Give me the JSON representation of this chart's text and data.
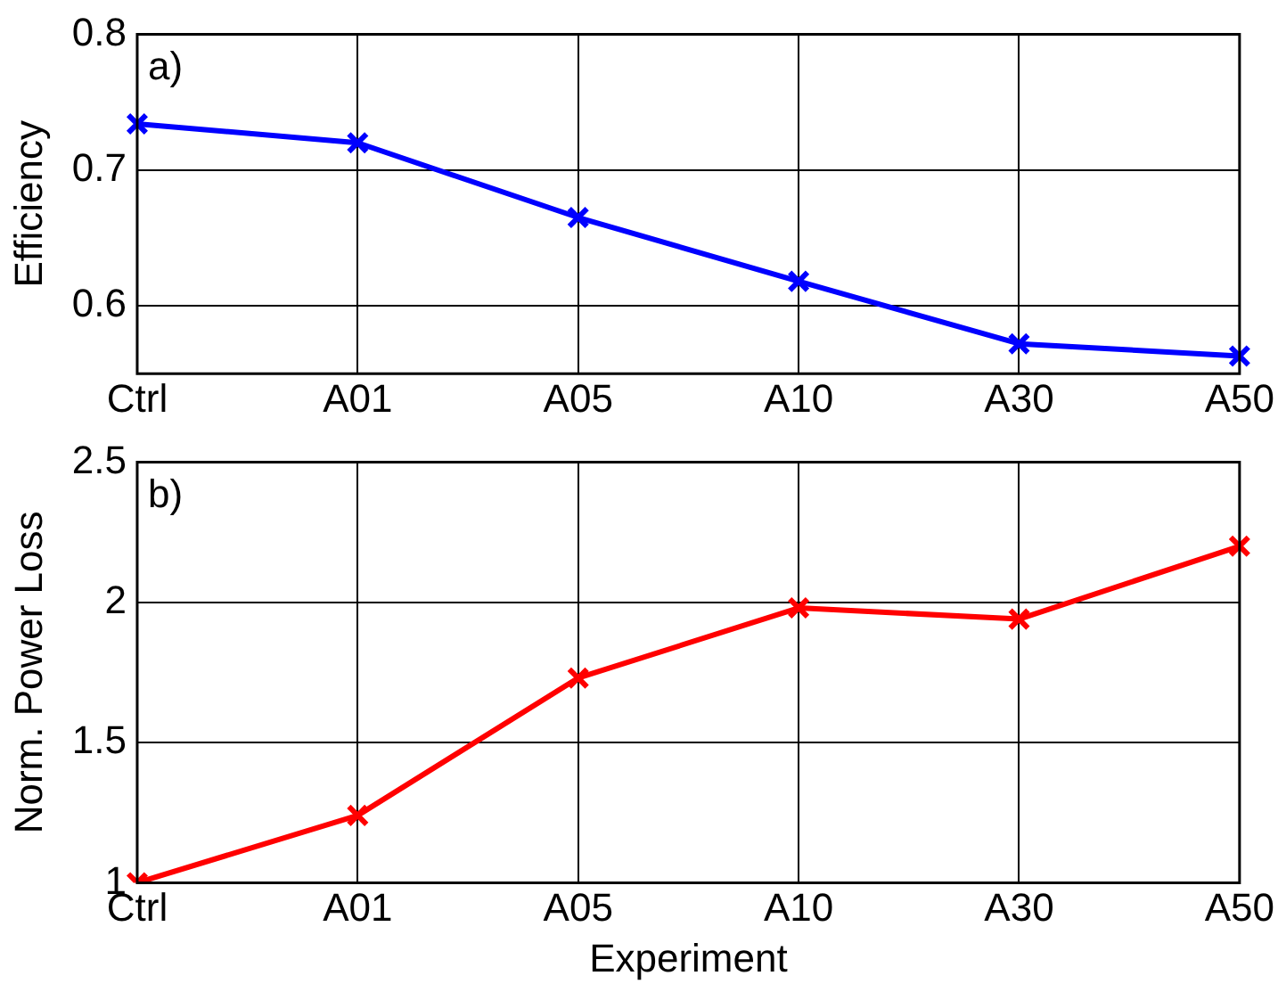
{
  "chart_data": [
    {
      "type": "line",
      "ylabel": "Efficiency",
      "annotations": [
        "a)"
      ],
      "categories": [
        "Ctrl",
        "A01",
        "A05",
        "A10",
        "A30",
        "A50"
      ],
      "series": [
        {
          "color": "#0000ff",
          "values": [
            0.734,
            0.72,
            0.665,
            0.618,
            0.572,
            0.563
          ]
        }
      ],
      "ylim": [
        0.55,
        0.8
      ],
      "yticks": [
        0.6,
        0.7,
        0.8
      ],
      "grid": true,
      "marker": "cross",
      "line_style": "solid"
    },
    {
      "type": "line",
      "xlabel": "Experiment",
      "ylabel": "Norm. Power Loss",
      "annotations": [
        "b)"
      ],
      "categories": [
        "Ctrl",
        "A01",
        "A05",
        "A10",
        "A30",
        "A50"
      ],
      "series": [
        {
          "color": "#ff0000",
          "values": [
            1,
            1.24,
            1.73,
            1.98,
            1.94,
            2.2
          ]
        }
      ],
      "ylim": [
        1,
        2.5
      ],
      "yticks": [
        1,
        1.5,
        2,
        2.5
      ],
      "grid": true,
      "marker": "cross",
      "line_style": "solid"
    }
  ]
}
